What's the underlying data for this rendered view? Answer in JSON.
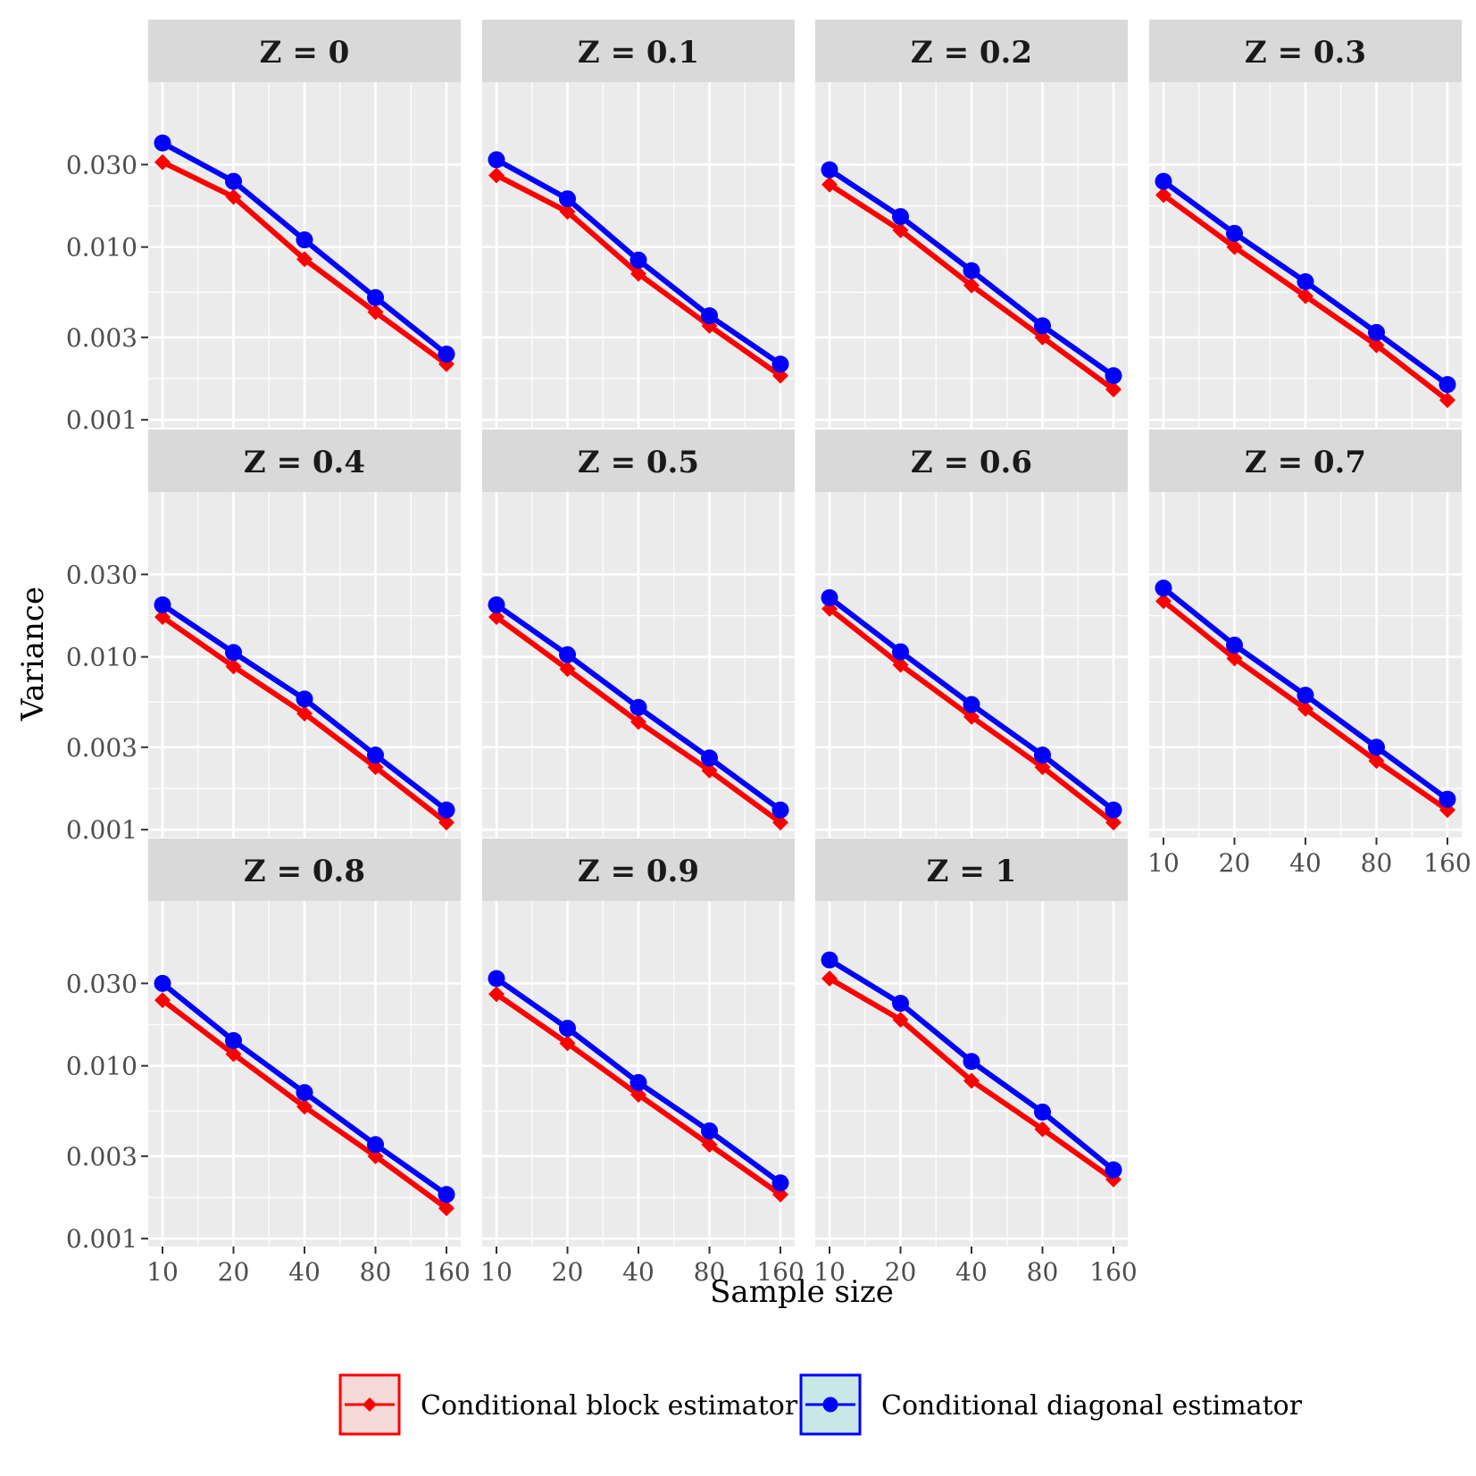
{
  "chart_data": {
    "type": "line",
    "facet_label": "Z",
    "xlabel": "Sample size",
    "ylabel": "Variance",
    "x": [
      10,
      20,
      40,
      80,
      160
    ],
    "x_tick_labels": [
      "10",
      "20",
      "40",
      "80",
      "160"
    ],
    "xscale": "log2",
    "yscale": "log10",
    "y_ticks": [
      0.001,
      0.003,
      0.01,
      0.03
    ],
    "y_tick_labels": [
      "0.001",
      "0.003",
      "0.010",
      "0.030"
    ],
    "ylim": [
      0.0009,
      0.09
    ],
    "grid": true,
    "legend_position": "bottom",
    "series": [
      {
        "name": "Conditional block estimator",
        "color": "#ff0000",
        "marker": "diamond"
      },
      {
        "name": "Conditional diagonal estimator",
        "color": "#0000ff",
        "marker": "circle"
      }
    ],
    "panels": [
      {
        "label": "Z = 0",
        "z": 0,
        "block": [
          0.031,
          0.0195,
          0.0085,
          0.0042,
          0.0021
        ],
        "diagonal": [
          0.04,
          0.024,
          0.011,
          0.0051,
          0.0024
        ]
      },
      {
        "label": "Z = 0.1",
        "z": 0.1,
        "block": [
          0.026,
          0.016,
          0.007,
          0.0035,
          0.0018
        ],
        "diagonal": [
          0.032,
          0.019,
          0.0084,
          0.004,
          0.0021
        ]
      },
      {
        "label": "Z = 0.2",
        "z": 0.2,
        "block": [
          0.023,
          0.0125,
          0.006,
          0.003,
          0.0015
        ],
        "diagonal": [
          0.028,
          0.015,
          0.0073,
          0.0035,
          0.0018
        ]
      },
      {
        "label": "Z = 0.3",
        "z": 0.3,
        "block": [
          0.02,
          0.01,
          0.0052,
          0.0027,
          0.0013
        ],
        "diagonal": [
          0.024,
          0.012,
          0.0063,
          0.0032,
          0.0016
        ]
      },
      {
        "label": "Z = 0.4",
        "z": 0.4,
        "block": [
          0.017,
          0.0088,
          0.0047,
          0.0023,
          0.0011
        ],
        "diagonal": [
          0.02,
          0.0106,
          0.0057,
          0.0027,
          0.0013
        ]
      },
      {
        "label": "Z = 0.5",
        "z": 0.5,
        "block": [
          0.017,
          0.0085,
          0.0042,
          0.0022,
          0.0011
        ],
        "diagonal": [
          0.02,
          0.0103,
          0.0051,
          0.0026,
          0.0013
        ]
      },
      {
        "label": "Z = 0.6",
        "z": 0.6,
        "block": [
          0.019,
          0.009,
          0.0045,
          0.0023,
          0.0011
        ],
        "diagonal": [
          0.022,
          0.0107,
          0.0053,
          0.0027,
          0.0013
        ]
      },
      {
        "label": "Z = 0.7",
        "z": 0.7,
        "block": [
          0.021,
          0.0098,
          0.005,
          0.0025,
          0.0013
        ],
        "diagonal": [
          0.025,
          0.0117,
          0.006,
          0.003,
          0.0015
        ]
      },
      {
        "label": "Z = 0.8",
        "z": 0.8,
        "block": [
          0.024,
          0.0117,
          0.0058,
          0.003,
          0.0015
        ],
        "diagonal": [
          0.03,
          0.014,
          0.007,
          0.0035,
          0.0018
        ]
      },
      {
        "label": "Z = 0.9",
        "z": 0.9,
        "block": [
          0.026,
          0.0135,
          0.0068,
          0.0035,
          0.0018
        ],
        "diagonal": [
          0.032,
          0.0165,
          0.008,
          0.0042,
          0.0021
        ]
      },
      {
        "label": "Z = 1",
        "z": 1,
        "block": [
          0.032,
          0.0185,
          0.0082,
          0.0043,
          0.0022
        ],
        "diagonal": [
          0.041,
          0.023,
          0.0106,
          0.0054,
          0.0025
        ]
      }
    ]
  }
}
